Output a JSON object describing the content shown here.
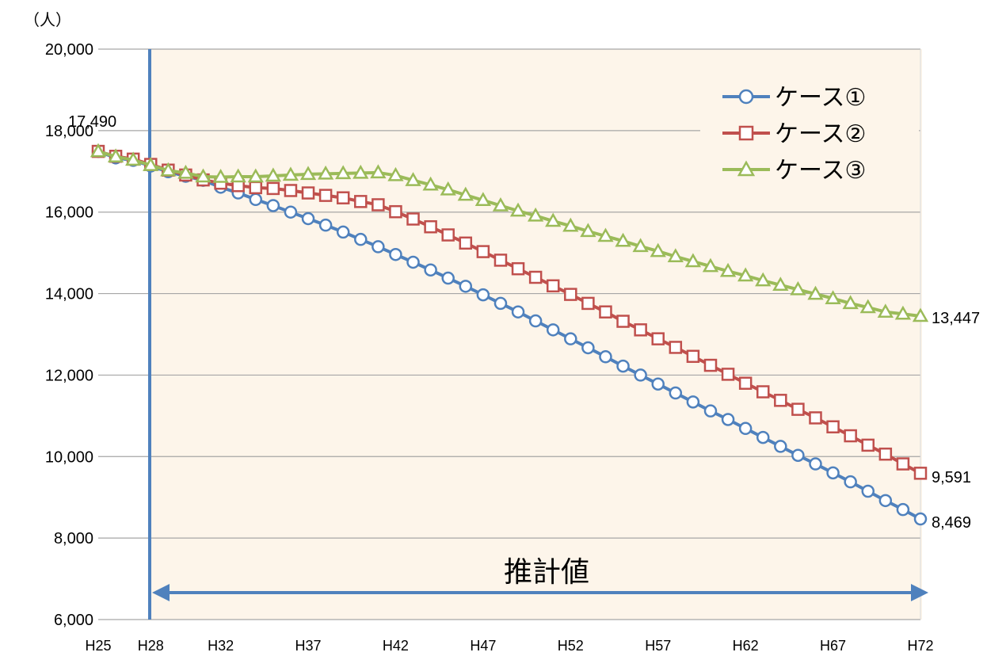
{
  "chart_data": {
    "type": "line",
    "ylabel": "（人）",
    "ylim": [
      6000,
      20000
    ],
    "yticks": [
      "20,000",
      "18,000",
      "16,000",
      "14,000",
      "12,000",
      "10,000",
      "8,000",
      "6,000"
    ],
    "ytick_values": [
      20000,
      18000,
      16000,
      14000,
      12000,
      10000,
      8000,
      6000
    ],
    "x_start_year": 25,
    "x_end_year": 72,
    "xticks": [
      "H25",
      "H28",
      "H32",
      "H37",
      "H42",
      "H47",
      "H52",
      "H57",
      "H62",
      "H67",
      "H72"
    ],
    "xtick_years": [
      25,
      28,
      32,
      37,
      42,
      47,
      52,
      57,
      62,
      67,
      72
    ],
    "estimate_start_year": 28,
    "estimate_label": "推計値",
    "start_label": "17,490",
    "grid": true,
    "legend_position": "top-right",
    "series": [
      {
        "name": "ケース①",
        "color": "#4f81bd",
        "marker": "circle",
        "end_label": "8,469",
        "values": [
          17490,
          17330,
          17270,
          17130,
          16990,
          16880,
          16780,
          16610,
          16470,
          16310,
          16160,
          16000,
          15840,
          15680,
          15510,
          15330,
          15150,
          14960,
          14770,
          14580,
          14380,
          14180,
          13970,
          13760,
          13550,
          13330,
          13110,
          12890,
          12670,
          12450,
          12220,
          12000,
          11780,
          11560,
          11340,
          11120,
          10910,
          10690,
          10470,
          10250,
          10030,
          9820,
          9600,
          9380,
          9150,
          8920,
          8700,
          8469
        ]
      },
      {
        "name": "ケース②",
        "color": "#c0504d",
        "marker": "square",
        "end_label": "9,591",
        "values": [
          17490,
          17370,
          17300,
          17170,
          17030,
          16910,
          16790,
          16710,
          16650,
          16600,
          16580,
          16530,
          16470,
          16410,
          16350,
          16260,
          16180,
          16010,
          15830,
          15640,
          15440,
          15240,
          15030,
          14820,
          14610,
          14400,
          14190,
          13980,
          13760,
          13550,
          13320,
          13110,
          12890,
          12680,
          12460,
          12240,
          12020,
          11800,
          11590,
          11380,
          11160,
          10950,
          10730,
          10510,
          10280,
          10060,
          9820,
          9591
        ]
      },
      {
        "name": "ケース③",
        "color": "#9bbb59",
        "marker": "triangle",
        "end_label": "13,447",
        "values": [
          17490,
          17360,
          17280,
          17150,
          17020,
          16960,
          16870,
          16860,
          16870,
          16870,
          16890,
          16910,
          16930,
          16940,
          16950,
          16960,
          16970,
          16900,
          16780,
          16670,
          16550,
          16420,
          16290,
          16160,
          16030,
          15910,
          15780,
          15660,
          15530,
          15410,
          15290,
          15160,
          15040,
          14910,
          14790,
          14670,
          14550,
          14440,
          14320,
          14210,
          14100,
          13990,
          13880,
          13760,
          13660,
          13550,
          13500,
          13447
        ]
      }
    ]
  }
}
